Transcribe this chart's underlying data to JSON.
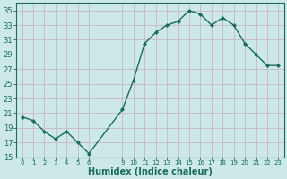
{
  "x": [
    0,
    1,
    2,
    3,
    4,
    5,
    6,
    9,
    10,
    11,
    12,
    13,
    14,
    15,
    16,
    17,
    18,
    19,
    20,
    21,
    22,
    23
  ],
  "y": [
    20.5,
    20.0,
    18.5,
    17.5,
    18.5,
    17.0,
    15.5,
    21.5,
    25.5,
    30.5,
    32.0,
    33.0,
    33.5,
    35.0,
    34.5,
    33.0,
    34.0,
    33.0,
    30.5,
    29.0,
    27.5,
    27.5
  ],
  "line_color": "#1a6b5a",
  "marker_color": "#1a6b5a",
  "bg_color": "#cce8e8",
  "grid_color": "#c8b8b8",
  "xlabel": "Humidex (Indice chaleur)",
  "ylabel": "",
  "xlim": [
    -0.5,
    23.5
  ],
  "ylim": [
    15,
    36
  ],
  "yticks": [
    15,
    17,
    19,
    21,
    23,
    25,
    27,
    29,
    31,
    33,
    35
  ],
  "xtick_positions": [
    0,
    1,
    2,
    3,
    4,
    5,
    6,
    9,
    10,
    11,
    12,
    13,
    14,
    15,
    16,
    17,
    18,
    19,
    20,
    21,
    22,
    23
  ],
  "xtick_labels": [
    "0",
    "1",
    "2",
    "3",
    "4",
    "5",
    "6",
    "9",
    "10",
    "11",
    "12",
    "13",
    "14",
    "15",
    "16",
    "17",
    "18",
    "19",
    "20",
    "21",
    "22",
    "23"
  ],
  "font_color": "#1a6b5a",
  "xlabel_fontsize": 7,
  "ytick_fontsize": 6,
  "xtick_fontsize": 5,
  "linewidth": 1.0,
  "markersize": 2.0
}
